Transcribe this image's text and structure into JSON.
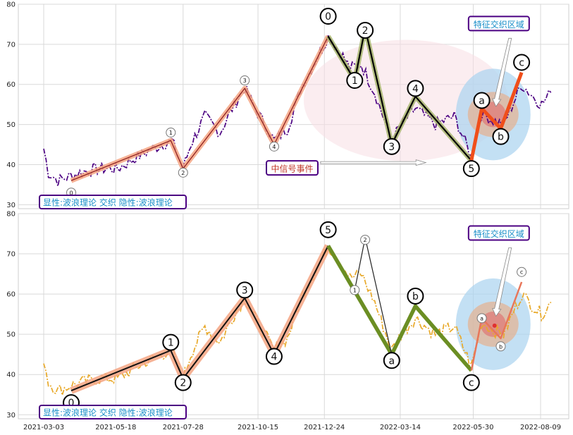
{
  "chart_data": [
    {
      "type": "line",
      "title": "",
      "xlabel": "",
      "ylabel": "",
      "ylim": [
        29,
        80
      ],
      "yticks": [
        30,
        40,
        50,
        60,
        70,
        80
      ],
      "grid": true,
      "price_color": "#4b0082",
      "price_style": "dash-dot",
      "wave_lines": [
        {
          "name": "",
          "color": "#8b1a1a",
          "halo": "#f4a582",
          "x": [
            "2021-04-01",
            "2021-07-15",
            "2021-07-28",
            "2021-10-01",
            "2021-11-01",
            "2021-12-28"
          ],
          "y": [
            36,
            46,
            39,
            59,
            45,
            72
          ]
        },
        {
          "name": "",
          "color": "#000000",
          "halo": "#a7b56f",
          "x": [
            "2021-12-28",
            "2022-01-25",
            "2022-02-05",
            "2022-03-05",
            "2022-03-30",
            "2022-05-28"
          ],
          "y": [
            72,
            61,
            74,
            45,
            57,
            41
          ]
        },
        {
          "name": "",
          "color": "#f04e1a",
          "halo": null,
          "x": [
            "2022-05-28",
            "2022-06-08",
            "2022-06-28",
            "2022-07-20"
          ],
          "y": [
            41,
            54,
            49,
            63
          ]
        }
      ],
      "wave_labels": [
        {
          "text": "0",
          "x": "2021-04-01",
          "y": 33,
          "size": "small"
        },
        {
          "text": "1",
          "x": "2021-07-15",
          "y": 48,
          "size": "small"
        },
        {
          "text": "2",
          "x": "2021-07-28",
          "y": 38,
          "size": "small"
        },
        {
          "text": "3",
          "x": "2021-10-01",
          "y": 61,
          "size": "small"
        },
        {
          "text": "4",
          "x": "2021-11-01",
          "y": 44.5,
          "size": "small"
        },
        {
          "text": "0",
          "x": "2021-12-28",
          "y": 77,
          "size": "large"
        },
        {
          "text": "1",
          "x": "2022-01-25",
          "y": 61,
          "size": "large"
        },
        {
          "text": "2",
          "x": "2022-02-05",
          "y": 73.5,
          "size": "large"
        },
        {
          "text": "3",
          "x": "2022-03-05",
          "y": 44.5,
          "size": "large"
        },
        {
          "text": "4",
          "x": "2022-03-30",
          "y": 59,
          "size": "large"
        },
        {
          "text": "5",
          "x": "2022-05-28",
          "y": 39,
          "size": "large"
        },
        {
          "text": "a",
          "x": "2022-06-08",
          "y": 56,
          "size": "large"
        },
        {
          "text": "b",
          "x": "2022-06-28",
          "y": 47,
          "size": "large"
        },
        {
          "text": "c",
          "x": "2022-07-20",
          "y": 65.5,
          "size": "large"
        }
      ],
      "callouts": [
        {
          "text": "特征交织区域",
          "x": "2022-06-26",
          "y": 75,
          "color": "#1a8fc9"
        },
        {
          "text": "中信号事件",
          "x": "2021-11-20",
          "y": 39,
          "color": "#c0392b"
        }
      ],
      "legend": "显性:波浪理论 交织 隐性:波浪理论"
    },
    {
      "type": "line",
      "title": "",
      "xlabel": "",
      "ylabel": "",
      "ylim": [
        29,
        80
      ],
      "yticks": [
        30,
        40,
        50,
        60,
        70,
        80
      ],
      "grid": true,
      "price_color": "#e8a92a",
      "price_style": "dash-dot",
      "x_ticks": [
        "2021-03-03",
        "2021-05-18",
        "2021-07-28",
        "2021-10-15",
        "2021-12-24",
        "2022-03-14",
        "2022-05-30",
        "2022-08-09"
      ],
      "wave_lines": [
        {
          "name": "",
          "color": "#111111",
          "halo": "#f4a582",
          "x": [
            "2021-04-01",
            "2021-07-15",
            "2021-07-28",
            "2021-10-01",
            "2021-11-01",
            "2021-12-28"
          ],
          "y": [
            36,
            46,
            39,
            59,
            45,
            72
          ]
        },
        {
          "name": "",
          "color": "#6b8e23",
          "halo": null,
          "x": [
            "2021-12-28",
            "2022-03-05",
            "2022-03-30",
            "2022-05-28"
          ],
          "y": [
            72,
            45,
            57,
            41
          ]
        },
        {
          "name": "",
          "color": "#222222",
          "halo": null,
          "x": [
            "2022-01-25",
            "2022-02-05",
            "2022-03-05"
          ],
          "y": [
            61,
            74,
            45
          ]
        },
        {
          "name": "",
          "color": "#e8765a",
          "halo": null,
          "x": [
            "2022-05-28",
            "2022-06-08",
            "2022-06-28",
            "2022-07-20"
          ],
          "y": [
            41,
            54,
            49,
            63
          ]
        }
      ],
      "wave_labels": [
        {
          "text": "0",
          "x": "2021-04-01",
          "y": 33,
          "size": "large"
        },
        {
          "text": "1",
          "x": "2021-07-15",
          "y": 48,
          "size": "large"
        },
        {
          "text": "2",
          "x": "2021-07-28",
          "y": 38,
          "size": "large"
        },
        {
          "text": "3",
          "x": "2021-10-01",
          "y": 61,
          "size": "large"
        },
        {
          "text": "4",
          "x": "2021-11-01",
          "y": 44.5,
          "size": "large"
        },
        {
          "text": "5",
          "x": "2021-12-28",
          "y": 76,
          "size": "large"
        },
        {
          "text": "1",
          "x": "2022-01-25",
          "y": 61,
          "size": "small"
        },
        {
          "text": "2",
          "x": "2022-02-05",
          "y": 73.5,
          "size": "small"
        },
        {
          "text": "a",
          "x": "2022-03-05",
          "y": 43.5,
          "size": "large"
        },
        {
          "text": "b",
          "x": "2022-03-30",
          "y": 59.5,
          "size": "large"
        },
        {
          "text": "c",
          "x": "2022-05-28",
          "y": 38,
          "size": "large"
        },
        {
          "text": "a",
          "x": "2022-06-08",
          "y": 54,
          "size": "small"
        },
        {
          "text": "b",
          "x": "2022-06-28",
          "y": 47,
          "size": "small"
        },
        {
          "text": "c",
          "x": "2022-07-20",
          "y": 65.5,
          "size": "small"
        }
      ],
      "callouts": [
        {
          "text": "特征交织区域",
          "x": "2022-06-26",
          "y": 75,
          "color": "#1a8fc9"
        }
      ],
      "legend": "显性:波浪理论 交织 隐性:波浪理论"
    }
  ]
}
